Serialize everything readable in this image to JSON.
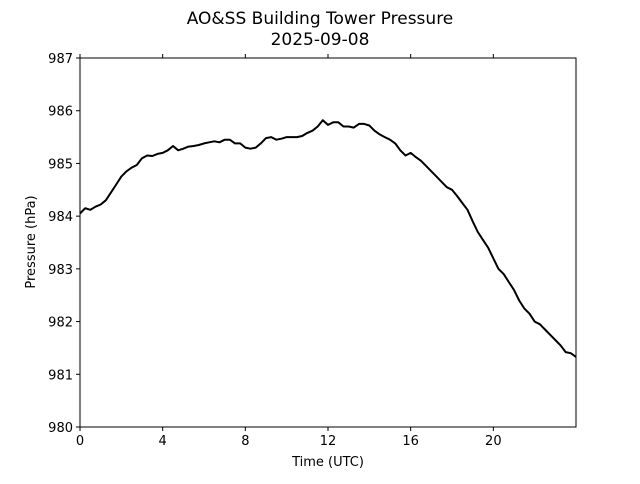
{
  "chart_data": {
    "type": "line",
    "title": "AO&SS Building Tower Pressure",
    "subtitle": "2025-09-08",
    "xlabel": "Time (UTC)",
    "ylabel": "Pressure (hPa)",
    "xlim": [
      0,
      24
    ],
    "ylim": [
      980,
      987
    ],
    "xticks": [
      0,
      4,
      8,
      12,
      16,
      20
    ],
    "xtick_labels": [
      "0",
      "4",
      "8",
      "12",
      "16",
      "20"
    ],
    "yticks": [
      980,
      981,
      982,
      983,
      984,
      985,
      986,
      987
    ],
    "ytick_labels": [
      "980",
      "981",
      "982",
      "983",
      "984",
      "985",
      "986",
      "987"
    ],
    "grid": false,
    "series": [
      {
        "name": "Pressure",
        "color": "#000000",
        "x": [
          0,
          0.25,
          0.5,
          0.75,
          1,
          1.25,
          1.5,
          1.75,
          2,
          2.25,
          2.5,
          2.75,
          3,
          3.25,
          3.5,
          3.75,
          4,
          4.25,
          4.5,
          4.75,
          5,
          5.25,
          5.5,
          5.75,
          6,
          6.25,
          6.5,
          6.75,
          7,
          7.25,
          7.5,
          7.75,
          8,
          8.25,
          8.5,
          8.75,
          9,
          9.25,
          9.5,
          9.75,
          10,
          10.25,
          10.5,
          10.75,
          11,
          11.25,
          11.5,
          11.75,
          12,
          12.25,
          12.5,
          12.75,
          13,
          13.25,
          13.5,
          13.75,
          14,
          14.25,
          14.5,
          14.75,
          15,
          15.25,
          15.5,
          15.75,
          16,
          16.25,
          16.5,
          16.75,
          17,
          17.25,
          17.5,
          17.75,
          18,
          18.25,
          18.5,
          18.75,
          19,
          19.25,
          19.5,
          19.75,
          20,
          20.25,
          20.5,
          20.75,
          21,
          21.25,
          21.5,
          21.75,
          22,
          22.25,
          22.5,
          22.75,
          23,
          23.25,
          23.5,
          23.75,
          24
        ],
        "y": [
          984.05,
          984.15,
          984.12,
          984.18,
          984.22,
          984.3,
          984.45,
          984.6,
          984.75,
          984.85,
          984.92,
          984.97,
          985.1,
          985.15,
          985.14,
          985.18,
          985.2,
          985.25,
          985.33,
          985.25,
          985.28,
          985.32,
          985.33,
          985.35,
          985.38,
          985.4,
          985.42,
          985.4,
          985.45,
          985.45,
          985.38,
          985.38,
          985.3,
          985.28,
          985.3,
          985.38,
          985.48,
          985.5,
          985.45,
          985.47,
          985.5,
          985.5,
          985.5,
          985.52,
          985.58,
          985.62,
          985.7,
          985.82,
          985.73,
          985.78,
          985.78,
          985.7,
          985.7,
          985.68,
          985.75,
          985.75,
          985.72,
          985.62,
          985.55,
          985.5,
          985.45,
          985.38,
          985.25,
          985.15,
          985.2,
          985.12,
          985.05,
          984.95,
          984.85,
          984.75,
          984.65,
          984.55,
          984.5,
          984.38,
          984.25,
          984.12,
          983.9,
          983.7,
          983.55,
          983.4,
          983.2,
          983.0,
          982.9,
          982.75,
          982.6,
          982.4,
          982.25,
          982.15,
          982.0,
          981.95,
          981.85,
          981.75,
          981.65,
          981.55,
          981.42,
          981.4,
          981.33
        ]
      }
    ]
  }
}
